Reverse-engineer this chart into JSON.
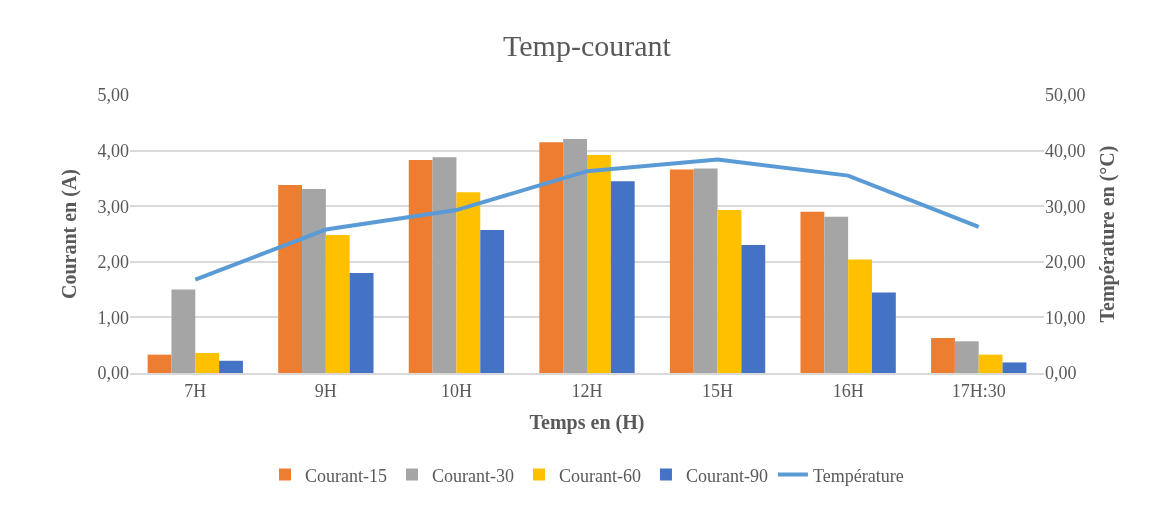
{
  "chart_data": {
    "type": "bar",
    "title": "Temp-courant",
    "xlabel": "Temps en (H)",
    "ylabel": "Courant en (A)",
    "y2label": "Température en (°C)",
    "categories": [
      "7H",
      "9H",
      "10H",
      "12H",
      "15H",
      "16H",
      "17H:30"
    ],
    "series": [
      {
        "name": "Courant-15",
        "color": "#ed7d31",
        "values": [
          0.33,
          3.38,
          3.83,
          4.15,
          3.66,
          2.9,
          0.63
        ]
      },
      {
        "name": "Courant-30",
        "color": "#a5a5a5",
        "values": [
          1.5,
          3.31,
          3.88,
          4.21,
          3.68,
          2.81,
          0.57
        ]
      },
      {
        "name": "Courant-60",
        "color": "#ffc000",
        "values": [
          0.36,
          2.48,
          3.25,
          3.92,
          2.93,
          2.04,
          0.33
        ]
      },
      {
        "name": "Courant-90",
        "color": "#4472c4",
        "values": [
          0.22,
          1.8,
          2.57,
          3.45,
          2.3,
          1.45,
          0.19
        ]
      },
      {
        "name": "Température",
        "color": "#5b9bd5",
        "type": "line",
        "axis": "y2",
        "values": [
          16.8,
          25.8,
          29.3,
          36.3,
          38.4,
          35.5,
          26.3
        ]
      }
    ],
    "ylim": [
      0,
      5
    ],
    "yticks": [
      {
        "value": 0,
        "label": "0,00"
      },
      {
        "value": 1,
        "label": "1,00"
      },
      {
        "value": 2,
        "label": "2,00"
      },
      {
        "value": 3,
        "label": "3,00"
      },
      {
        "value": 4,
        "label": "4,00"
      },
      {
        "value": 5,
        "label": "5,00"
      }
    ],
    "y2lim": [
      0,
      50
    ],
    "y2ticks": [
      {
        "value": 0,
        "label": "0,00"
      },
      {
        "value": 10,
        "label": "10,00"
      },
      {
        "value": 20,
        "label": "20,00"
      },
      {
        "value": 30,
        "label": "30,00"
      },
      {
        "value": 40,
        "label": "40,00"
      },
      {
        "value": 50,
        "label": "50,00"
      }
    ],
    "grid": "y",
    "legend": "bottom"
  }
}
